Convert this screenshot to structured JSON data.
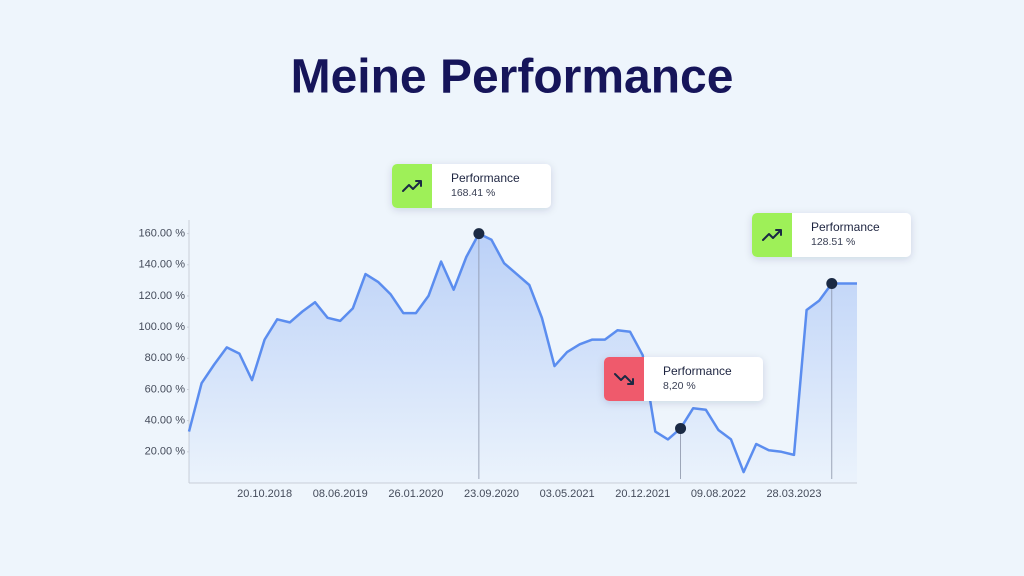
{
  "chart_data": {
    "type": "line",
    "title": "Meine Performance",
    "categories": [
      null,
      null,
      null,
      null,
      null,
      null,
      "20.10.2018",
      null,
      null,
      null,
      null,
      null,
      "08.06.2019",
      null,
      null,
      null,
      null,
      null,
      "26.01.2020",
      null,
      null,
      null,
      null,
      null,
      "23.09.2020",
      null,
      null,
      null,
      null,
      null,
      "03.05.2021",
      null,
      null,
      null,
      null,
      null,
      "20.12.2021",
      null,
      null,
      null,
      null,
      null,
      "09.08.2022",
      null,
      null,
      null,
      null,
      null,
      "28.03.2023",
      null,
      null,
      null,
      null,
      null
    ],
    "values": [
      33,
      64,
      76,
      87,
      83,
      66,
      92,
      105,
      103,
      110,
      116,
      106,
      104,
      112,
      134,
      129,
      121,
      109,
      109,
      120,
      142,
      124,
      145,
      160,
      156,
      141,
      134,
      127,
      106,
      75,
      84,
      89,
      92,
      92,
      98,
      97,
      82,
      33,
      28,
      35,
      48,
      47,
      34,
      28,
      7,
      25,
      21,
      20,
      18,
      111,
      117,
      128,
      128,
      128
    ],
    "color": "#5b8def",
    "ylim": [
      0,
      170
    ],
    "yticks": [
      {
        "value": 20,
        "label": "20.00 %"
      },
      {
        "value": 40,
        "label": "40.00 %"
      },
      {
        "value": 60,
        "label": "60.00 %"
      },
      {
        "value": 80,
        "label": "80.00 %"
      },
      {
        "value": 100,
        "label": "100.00 %"
      },
      {
        "value": 120,
        "label": "120.00 %"
      },
      {
        "value": 140,
        "label": "140.00 %"
      },
      {
        "value": 160,
        "label": "160.00 %"
      }
    ],
    "annotations": [
      {
        "label": "Performance",
        "text": "168.41 %",
        "trend": "up"
      },
      {
        "label": "Performance",
        "text": "8,20 %",
        "trend": "down"
      },
      {
        "label": "Performance",
        "text": "128.51 %",
        "trend": "up"
      }
    ]
  }
}
